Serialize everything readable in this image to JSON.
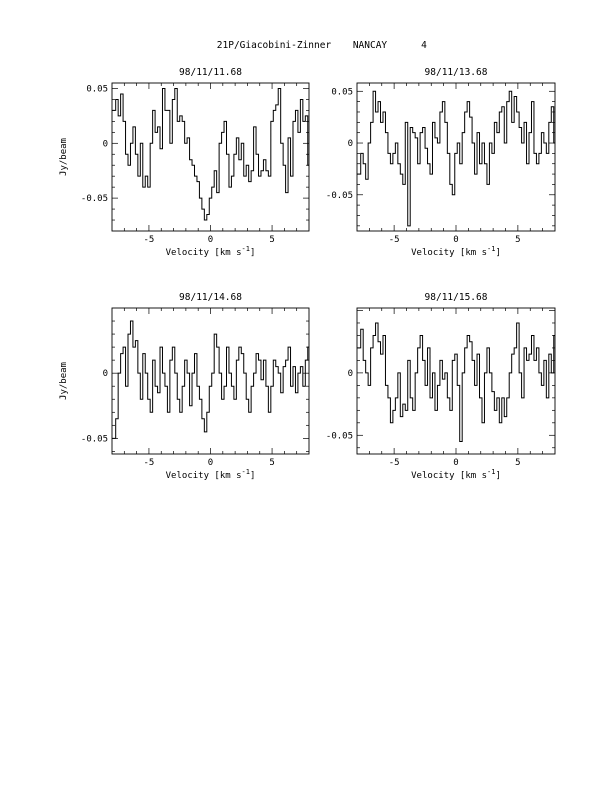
{
  "figure": {
    "title_object": "21P/Giacobini-Zinner",
    "title_site": "NANCAY",
    "title_page": "4"
  },
  "chart_data": [
    {
      "type": "line",
      "step": true,
      "title": "98/11/11.68",
      "xlabel": "Velocity [km s",
      "xlabel_exp": "-1",
      "xlabel_close": "]",
      "ylabel": "Jy/beam",
      "xlim": [
        -8,
        8
      ],
      "ylim": [
        -0.08,
        0.055
      ],
      "xticks": [
        -5,
        0,
        5
      ],
      "xtick_labels": [
        "-5",
        "0",
        "5"
      ],
      "yticks": [
        0.05,
        0,
        -0.05
      ],
      "ytick_labels": [
        "0.05",
        "0",
        "-0.05"
      ],
      "x_start": -7.8,
      "x_step": 0.2,
      "values": [
        0.03,
        0.04,
        0.025,
        0.045,
        0.02,
        -0.01,
        -0.02,
        0.0,
        0.015,
        -0.01,
        -0.03,
        0.0,
        -0.04,
        -0.03,
        -0.04,
        0.0,
        0.03,
        0.01,
        0.015,
        -0.005,
        0.05,
        0.03,
        0.03,
        0.0,
        0.04,
        0.05,
        0.02,
        0.025,
        0.02,
        0.0,
        0.005,
        -0.015,
        -0.02,
        -0.03,
        -0.035,
        -0.05,
        -0.06,
        -0.07,
        -0.065,
        -0.05,
        -0.04,
        -0.025,
        -0.045,
        0.0,
        0.01,
        0.02,
        -0.01,
        -0.04,
        -0.03,
        -0.01,
        0.005,
        -0.015,
        0.0,
        -0.03,
        -0.02,
        -0.035,
        -0.025,
        0.015,
        -0.01,
        -0.03,
        -0.025,
        -0.015,
        -0.025,
        -0.03,
        0.02,
        0.03,
        0.035,
        0.05,
        0.0,
        -0.02,
        -0.045,
        0.005,
        -0.03,
        0.02,
        0.03,
        0.01,
        0.04,
        0.02,
        0.025,
        -0.02
      ]
    },
    {
      "type": "line",
      "step": true,
      "title": "98/11/13.68",
      "xlabel": "Velocity [km s",
      "xlabel_exp": "-1",
      "xlabel_close": "]",
      "ylabel": "",
      "xlim": [
        -8,
        8
      ],
      "ylim": [
        -0.085,
        0.058
      ],
      "xticks": [
        -5,
        0,
        5
      ],
      "xtick_labels": [
        "-5",
        "0",
        "5"
      ],
      "yticks": [
        0.05,
        0,
        -0.05
      ],
      "ytick_labels": [
        "0.05",
        "0",
        "-0.05"
      ],
      "x_start": -7.8,
      "x_step": 0.2,
      "values": [
        -0.03,
        -0.01,
        -0.02,
        -0.035,
        0.0,
        0.02,
        0.05,
        0.03,
        0.04,
        0.02,
        0.03,
        0.01,
        -0.01,
        -0.02,
        -0.01,
        0.0,
        -0.02,
        -0.03,
        -0.04,
        0.02,
        -0.08,
        0.015,
        0.01,
        0.005,
        -0.02,
        0.01,
        0.015,
        -0.005,
        -0.02,
        -0.03,
        0.02,
        0.005,
        0.0,
        0.03,
        0.04,
        0.02,
        -0.01,
        -0.04,
        -0.05,
        -0.01,
        0.0,
        -0.02,
        0.01,
        0.03,
        0.04,
        0.025,
        0.0,
        -0.03,
        0.01,
        -0.02,
        0.0,
        -0.02,
        -0.04,
        0.0,
        -0.01,
        0.02,
        0.01,
        0.03,
        0.035,
        0.0,
        0.04,
        0.05,
        0.02,
        0.045,
        0.03,
        0.015,
        0.0,
        0.02,
        -0.02,
        0.01,
        0.04,
        -0.01,
        -0.02,
        -0.01,
        0.01,
        0.0,
        -0.01,
        0.02,
        0.035,
        0.0
      ]
    },
    {
      "type": "line",
      "step": true,
      "title": "98/11/14.68",
      "xlabel": "Velocity [km s",
      "xlabel_exp": "-1",
      "xlabel_close": "]",
      "ylabel": "Jy/beam",
      "xlim": [
        -8,
        8
      ],
      "ylim": [
        -0.062,
        0.05
      ],
      "xticks": [
        -5,
        0,
        5
      ],
      "xtick_labels": [
        "-5",
        "0",
        "5"
      ],
      "yticks": [
        0,
        -0.05
      ],
      "ytick_labels": [
        "0",
        "-0.05"
      ],
      "x_start": -7.8,
      "x_step": 0.2,
      "values": [
        -0.05,
        -0.035,
        0.0,
        0.015,
        0.02,
        -0.01,
        0.03,
        0.04,
        0.02,
        0.025,
        0.0,
        -0.02,
        0.015,
        0.0,
        -0.02,
        -0.03,
        0.01,
        -0.01,
        -0.015,
        0.02,
        0.0,
        -0.01,
        -0.03,
        0.01,
        0.02,
        0.0,
        -0.02,
        -0.03,
        -0.01,
        0.01,
        0.0,
        -0.025,
        0.0,
        0.015,
        -0.01,
        -0.02,
        -0.035,
        -0.045,
        -0.03,
        -0.01,
        0.0,
        0.03,
        0.02,
        0.0,
        -0.02,
        -0.01,
        0.02,
        0.0,
        -0.01,
        -0.02,
        0.01,
        0.02,
        0.015,
        0.0,
        -0.02,
        -0.03,
        -0.01,
        0.0,
        0.015,
        0.01,
        -0.005,
        0.01,
        -0.01,
        -0.03,
        -0.01,
        0.01,
        0.005,
        0.0,
        -0.015,
        0.005,
        0.01,
        0.02,
        -0.01,
        0.005,
        -0.015,
        0.0,
        0.005,
        -0.01,
        0.01,
        0.02
      ]
    },
    {
      "type": "line",
      "step": true,
      "title": "98/11/15.68",
      "xlabel": "Velocity [km s",
      "xlabel_exp": "-1",
      "xlabel_close": "]",
      "ylabel": "",
      "xlim": [
        -8,
        8
      ],
      "ylim": [
        -0.065,
        0.052
      ],
      "xticks": [
        -5,
        0,
        5
      ],
      "xtick_labels": [
        "-5",
        "0",
        "5"
      ],
      "yticks": [
        0,
        -0.05
      ],
      "ytick_labels": [
        "0",
        "-0.05"
      ],
      "x_start": -7.8,
      "x_step": 0.2,
      "values": [
        0.02,
        0.035,
        0.01,
        0.0,
        -0.01,
        0.02,
        0.03,
        0.04,
        0.025,
        0.015,
        0.03,
        -0.01,
        -0.02,
        -0.04,
        -0.03,
        -0.02,
        0.0,
        -0.035,
        -0.025,
        -0.03,
        0.01,
        -0.02,
        -0.03,
        0.0,
        0.02,
        0.03,
        0.01,
        -0.01,
        0.02,
        -0.02,
        0.0,
        -0.03,
        -0.01,
        0.01,
        -0.005,
        0.0,
        -0.02,
        -0.03,
        0.01,
        0.015,
        -0.01,
        -0.055,
        0.0,
        0.02,
        0.03,
        0.025,
        0.01,
        -0.01,
        0.015,
        -0.02,
        -0.04,
        0.0,
        0.02,
        0.0,
        -0.015,
        -0.03,
        -0.02,
        -0.04,
        -0.02,
        -0.035,
        -0.02,
        0.0,
        0.015,
        0.02,
        0.04,
        0.0,
        -0.02,
        0.02,
        0.01,
        0.015,
        0.03,
        0.01,
        0.02,
        0.0,
        -0.01,
        0.01,
        -0.02,
        0.015,
        0.0,
        0.03
      ]
    }
  ]
}
